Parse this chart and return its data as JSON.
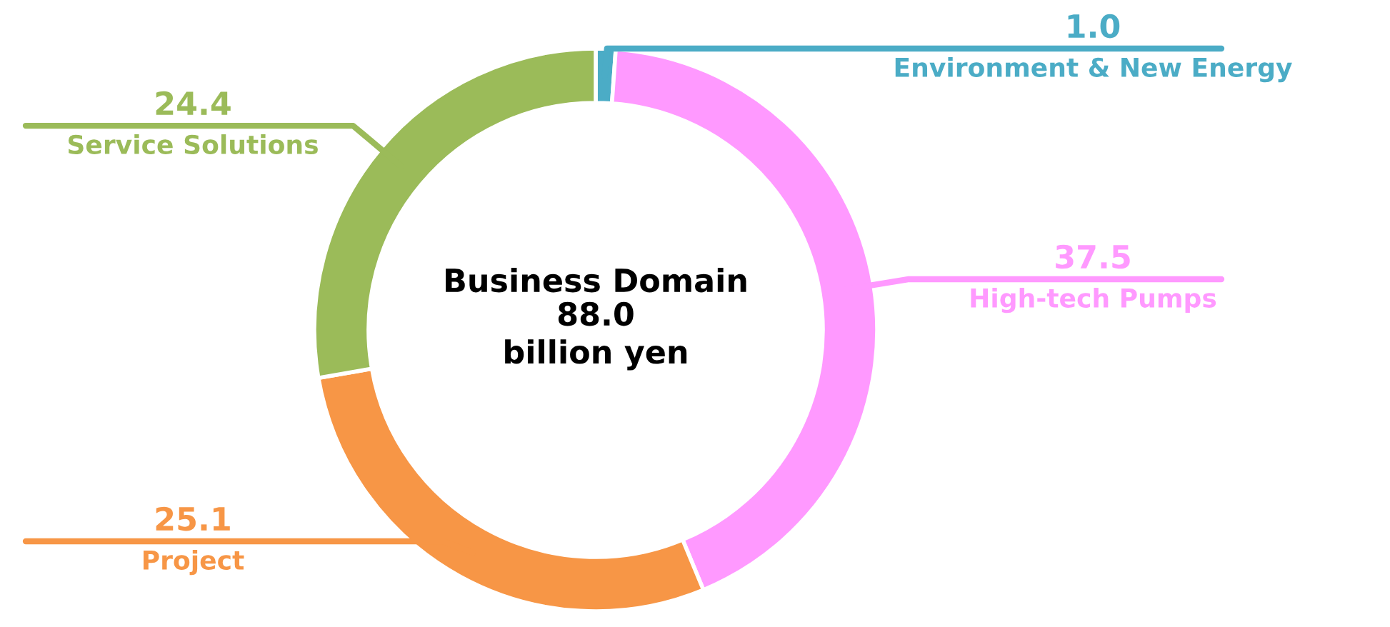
{
  "chart_data": {
    "type": "donut",
    "title": "Business Domain",
    "subtitle": "88.0\nbillion yen",
    "categories": [
      "Environment & New Energy",
      "High-tech Pumps",
      "Project",
      "Service Solutions"
    ],
    "values": [
      1.0,
      37.5,
      25.1,
      24.4
    ],
    "value_labels": [
      "1.0",
      "37.5",
      "25.1",
      "24.4"
    ],
    "colors": [
      "#4bacc6",
      "#ff99ff",
      "#f79646",
      "#9bbb59"
    ]
  }
}
